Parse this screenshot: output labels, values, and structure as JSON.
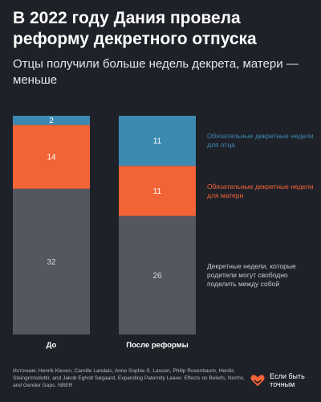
{
  "header": {
    "title": "В 2022 году Дания провела реформу декретного отпуска",
    "subtitle": "Отцы получили больше недель декрета, матери — меньше"
  },
  "chart_data": {
    "type": "bar",
    "stacked": true,
    "categories": [
      "До",
      "После реформы"
    ],
    "series": [
      {
        "name": "Декретные недели, которые родители могут свободно поделить между собой",
        "values": [
          32,
          26
        ],
        "color": "#545660"
      },
      {
        "name": "Обязательные декретные недели для матери",
        "values": [
          14,
          11
        ],
        "color": "#f26436"
      },
      {
        "name": "Обязательные декретные недели для отца",
        "values": [
          2,
          11
        ],
        "color": "#3c8ab0"
      }
    ],
    "title": "",
    "xlabel": "",
    "ylabel": "",
    "ylim": [
      0,
      48
    ],
    "grid": false,
    "legend": "right, beside the stack segments"
  },
  "legend": {
    "father": "Обязательные декретные недели для отца",
    "mother": "Обязательные декретные недели для матери",
    "shared": "Декретные недели, которые родители могут свободно поделить между собой"
  },
  "footer": {
    "source": "Источник: Henrik Kleven, Camille Landais, Anne Sophie S. Lassen, Philip Rosenbaum, Herdis Steingrimsdottir, and Jakob Egholt Søgaard, Expanding Paternity Leave: Effects on Beliefs, Norms, and Gender Gaps. NBER",
    "brand": "Если быть точным",
    "brand_icon": "heart-logo-icon",
    "brand_color": "#f26436"
  }
}
